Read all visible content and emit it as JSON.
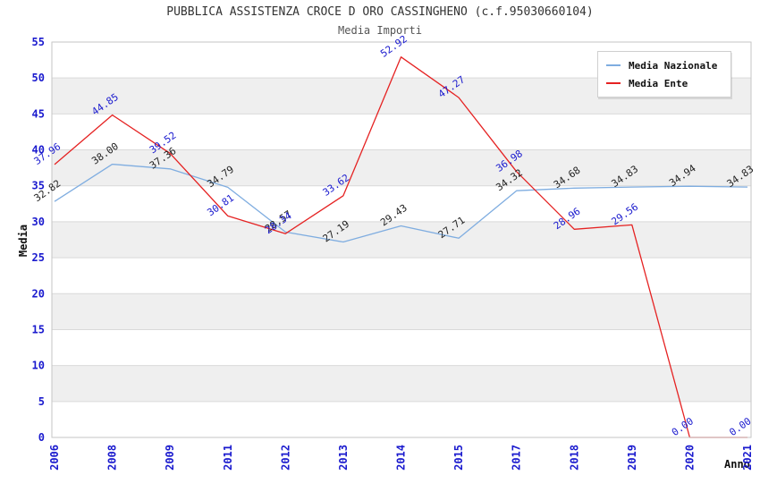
{
  "chart_data": {
    "type": "line",
    "title": "PUBBLICA ASSISTENZA CROCE D ORO CASSINGHENO (c.f.95030660104)",
    "subtitle": "Media Importi",
    "xlabel": "Anno",
    "ylabel": "Media",
    "categories": [
      "2006",
      "2008",
      "2009",
      "2011",
      "2012",
      "2013",
      "2014",
      "2015",
      "2017",
      "2018",
      "2019",
      "2020",
      "2021"
    ],
    "series": [
      {
        "name": "Media Nazionale",
        "line_color": "#7fade0",
        "label_color": "#222222",
        "values": [
          32.82,
          38.0,
          37.36,
          34.79,
          28.57,
          27.19,
          29.43,
          27.71,
          34.32,
          34.68,
          34.83,
          34.94,
          34.83
        ]
      },
      {
        "name": "Media Ente",
        "line_color": "#e52222",
        "label_color": "#1a1ace",
        "values": [
          37.96,
          44.85,
          39.52,
          30.81,
          28.34,
          33.62,
          52.92,
          47.27,
          36.98,
          28.96,
          29.56,
          0.0,
          0.0
        ]
      }
    ],
    "ylim": [
      0,
      55
    ],
    "ytick_step": 5,
    "grid": "alternating-horizontal-bands",
    "legend_position": "top-right",
    "colors": {
      "tick_label": "#1a1ace",
      "axis_title": "#111111",
      "band": "#efefef",
      "gridline": "#d9d9d9",
      "plot_border": "#c6c6c6",
      "title": "#333333",
      "subtitle": "#555555",
      "background": "#ffffff"
    }
  }
}
